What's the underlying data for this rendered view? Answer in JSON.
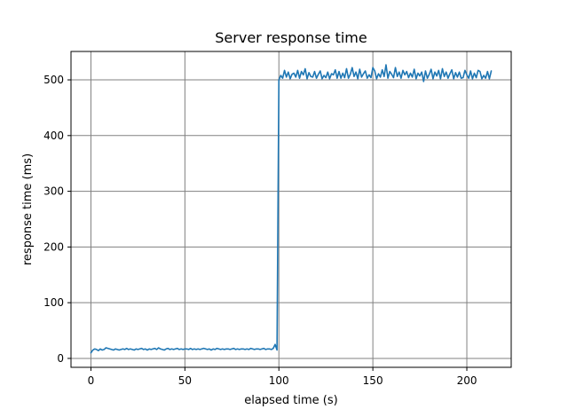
{
  "chart_data": {
    "type": "line",
    "title": "Server response time",
    "xlabel": "elapsed time (s)",
    "ylabel": "response time (ms)",
    "xlim": [
      -10.6,
      223.6
    ],
    "ylim": [
      -16,
      551
    ],
    "xticks": [
      0,
      50,
      100,
      150,
      200
    ],
    "yticks": [
      0,
      100,
      200,
      300,
      400,
      500
    ],
    "grid": true,
    "legend": "none",
    "series": [
      {
        "color": "#1f77b4",
        "x": [
          0,
          1,
          2,
          3,
          4,
          5,
          6,
          7,
          8,
          9,
          10,
          11,
          12,
          13,
          14,
          15,
          16,
          17,
          18,
          19,
          20,
          21,
          22,
          23,
          24,
          25,
          26,
          27,
          28,
          29,
          30,
          31,
          32,
          33,
          34,
          35,
          36,
          37,
          38,
          39,
          40,
          41,
          42,
          43,
          44,
          45,
          46,
          47,
          48,
          49,
          50,
          51,
          52,
          53,
          54,
          55,
          56,
          57,
          58,
          59,
          60,
          61,
          62,
          63,
          64,
          65,
          66,
          67,
          68,
          69,
          70,
          71,
          72,
          73,
          74,
          75,
          76,
          77,
          78,
          79,
          80,
          81,
          82,
          83,
          84,
          85,
          86,
          87,
          88,
          89,
          90,
          91,
          92,
          93,
          94,
          95,
          96,
          97,
          98,
          99,
          100,
          101,
          102,
          103,
          104,
          105,
          106,
          107,
          108,
          109,
          110,
          111,
          112,
          113,
          114,
          115,
          116,
          117,
          118,
          119,
          120,
          121,
          122,
          123,
          124,
          125,
          126,
          127,
          128,
          129,
          130,
          131,
          132,
          133,
          134,
          135,
          136,
          137,
          138,
          139,
          140,
          141,
          142,
          143,
          144,
          145,
          146,
          147,
          148,
          149,
          150,
          151,
          152,
          153,
          154,
          155,
          156,
          157,
          158,
          159,
          160,
          161,
          162,
          163,
          164,
          165,
          166,
          167,
          168,
          169,
          170,
          171,
          172,
          173,
          174,
          175,
          176,
          177,
          178,
          179,
          180,
          181,
          182,
          183,
          184,
          185,
          186,
          187,
          188,
          189,
          190,
          191,
          192,
          193,
          194,
          195,
          196,
          197,
          198,
          199,
          200,
          201,
          202,
          203,
          204,
          205,
          206,
          207,
          208,
          209,
          210,
          211,
          212,
          213
        ],
        "y": [
          10,
          15,
          17,
          16,
          14,
          17,
          15,
          16,
          19,
          18,
          17,
          16,
          15,
          17,
          16,
          15,
          16,
          17,
          16,
          18,
          16,
          17,
          16,
          15,
          17,
          16,
          17,
          18,
          16,
          17,
          15,
          17,
          16,
          17,
          18,
          16,
          19,
          17,
          16,
          15,
          17,
          18,
          16,
          17,
          16,
          17,
          18,
          16,
          17,
          16,
          17,
          17,
          16,
          18,
          16,
          17,
          16,
          17,
          16,
          17,
          18,
          17,
          16,
          17,
          15,
          17,
          16,
          18,
          17,
          16,
          17,
          16,
          17,
          17,
          16,
          17,
          18,
          16,
          17,
          16,
          17,
          17,
          16,
          17,
          16,
          18,
          17,
          16,
          17,
          17,
          16,
          17,
          18,
          16,
          17,
          17,
          16,
          18,
          25,
          15,
          500,
          508,
          503,
          517,
          505,
          514,
          502,
          510,
          512,
          505,
          517,
          503,
          515,
          509,
          520,
          502,
          513,
          506,
          505,
          515,
          503,
          510,
          516,
          502,
          508,
          504,
          514,
          502,
          511,
          509,
          518,
          503,
          515,
          503,
          512,
          504,
          520,
          503,
          510,
          522,
          506,
          514,
          502,
          519,
          505,
          511,
          516,
          503,
          509,
          504,
          522,
          516,
          502,
          511,
          505,
          518,
          506,
          527,
          503,
          515,
          510,
          504,
          522,
          506,
          514,
          503,
          517,
          509,
          515,
          504,
          512,
          505,
          519,
          502,
          512,
          507,
          514,
          497,
          516,
          503,
          510,
          519,
          502,
          514,
          507,
          517,
          502,
          520,
          506,
          514,
          503,
          511,
          518,
          502,
          513,
          505,
          514,
          503,
          504,
          517,
          509,
          503,
          516,
          502,
          512,
          504,
          517,
          515,
          502,
          508,
          503,
          515,
          502,
          516
        ]
      }
    ]
  }
}
